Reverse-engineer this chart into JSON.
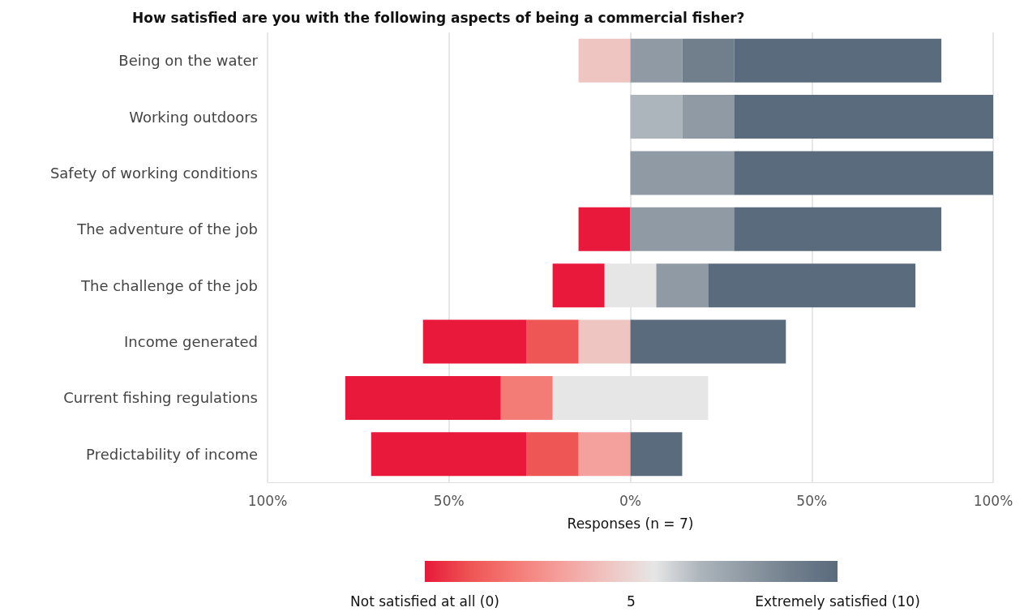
{
  "chart_data": {
    "type": "bar",
    "orientation": "horizontal",
    "stacked": true,
    "title": "How satisfied are you with the following aspects of being a commercial fisher?",
    "xlabel": "Responses (n = 7)",
    "categories": [
      "Being on the water",
      "Working outdoors",
      "Safety of working conditions",
      "The adventure of the job",
      "The challenge of the job",
      "Income generated",
      "Current fishing regulations",
      "Predictability of income"
    ],
    "series": [
      {
        "color": "#e6e6e6",
        "values": [
          null,
          null,
          null,
          null,
          -7.14,
          null,
          -21.43,
          null
        ]
      },
      {
        "color": "#efc5c2",
        "values": [
          -14.29,
          null,
          null,
          null,
          null,
          -14.29,
          null,
          null
        ]
      },
      {
        "color": "#f4a19d",
        "values": [
          null,
          null,
          null,
          null,
          null,
          null,
          null,
          -14.29
        ]
      },
      {
        "color": "#f47c77",
        "values": [
          null,
          null,
          null,
          null,
          null,
          null,
          -14.29,
          null
        ]
      },
      {
        "color": "#ee5555",
        "values": [
          null,
          null,
          null,
          null,
          null,
          -14.29,
          null,
          -14.29
        ]
      },
      {
        "color": "#e8193a",
        "values": [
          null,
          null,
          null,
          -14.29,
          -14.29,
          -28.57,
          -42.86,
          -42.86
        ]
      },
      {
        "color": "#e6e6e6",
        "values": [
          null,
          null,
          null,
          null,
          7.14,
          null,
          21.43,
          null
        ]
      },
      {
        "color": "#adb5bc",
        "values": [
          null,
          14.29,
          null,
          null,
          null,
          null,
          null,
          null
        ]
      },
      {
        "color": "#8f9aa4",
        "values": [
          14.29,
          14.29,
          28.57,
          28.57,
          14.29,
          null,
          null,
          null
        ]
      },
      {
        "color": "#717f8d",
        "values": [
          14.29,
          null,
          null,
          null,
          null,
          null,
          null,
          null
        ]
      },
      {
        "color": "#5a6b7d",
        "values": [
          57.14,
          71.43,
          71.43,
          57.14,
          57.14,
          42.86,
          null,
          14.29
        ]
      }
    ],
    "xlim": [
      -100,
      100
    ],
    "xticks": [
      {
        "value": -100,
        "label": "100%"
      },
      {
        "value": -50,
        "label": "50%"
      },
      {
        "value": 0,
        "label": "0%"
      },
      {
        "value": 50,
        "label": "50%"
      },
      {
        "value": 100,
        "label": "100%"
      }
    ],
    "grid": "x",
    "clim": [
      0,
      10
    ],
    "cticks": [
      {
        "value": 0,
        "label": "Not satisfied at all (0)"
      },
      5,
      {
        "value": 10,
        "label": "Extremely satisfied (10)"
      }
    ]
  }
}
